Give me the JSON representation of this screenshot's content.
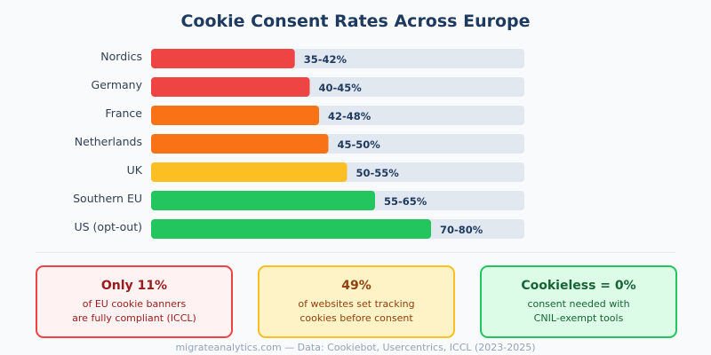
{
  "chart_data": {
    "type": "bar",
    "orientation": "horizontal",
    "title": "Cookie Consent Rates Across Europe",
    "xlim": [
      0,
      100
    ],
    "grid": false,
    "categories": [
      "Nordics",
      "Germany",
      "France",
      "Netherlands",
      "UK",
      "Southern EU",
      "US (opt-out)"
    ],
    "ranges": [
      [
        35,
        42
      ],
      [
        40,
        45
      ],
      [
        42,
        48
      ],
      [
        45,
        50
      ],
      [
        50,
        55
      ],
      [
        55,
        65
      ],
      [
        70,
        80
      ]
    ],
    "labels": [
      "35-42%",
      "40-45%",
      "42-48%",
      "45-50%",
      "50-55%",
      "55-65%",
      "70-80%"
    ],
    "colors": [
      "#ef4444",
      "#ef4444",
      "#f97316",
      "#f97316",
      "#fbbf24",
      "#22c55e",
      "#22c55e"
    ],
    "track_color": "#e2e8f0"
  },
  "cards": [
    {
      "headline": "Only 11%",
      "line1": "of EU cookie banners",
      "line2": "are fully compliant (ICCL)",
      "border": "#ef4444",
      "bg": "#fef2f2",
      "headColor": "#991b1b",
      "textColor": "#991b1b"
    },
    {
      "headline": "49%",
      "line1": "of websites set tracking",
      "line2": "cookies before consent",
      "border": "#fbbf24",
      "bg": "#fef3c7",
      "headColor": "#92400e",
      "textColor": "#92400e"
    },
    {
      "headline": "Cookieless = 0%",
      "line1": "consent needed with",
      "line2": "CNIL-exempt tools",
      "border": "#22c55e",
      "bg": "#dcfce7",
      "headColor": "#166534",
      "textColor": "#166534"
    }
  ],
  "footer": "migrateanalytics.com — Data: Cookiebot, Usercentrics, ICCL (2023-2025)"
}
